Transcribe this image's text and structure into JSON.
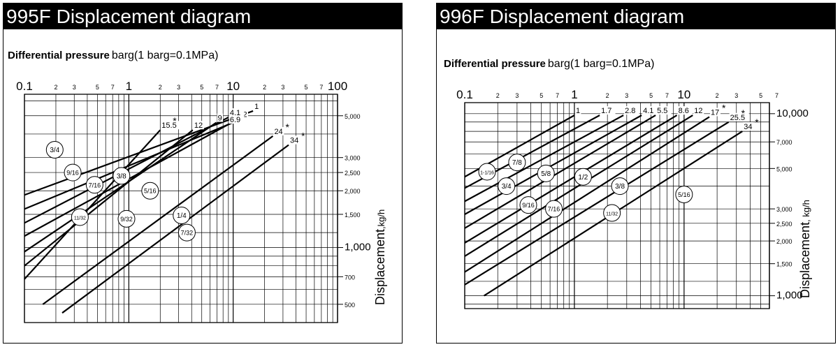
{
  "chart_data": [
    {
      "type": "line",
      "title": "995F Displacement diagram",
      "xlabel_bold": "Differential pressure",
      "xlabel_rest": "barg(1 barg=0.1MPa)",
      "ylabel_main": "Displacement",
      "ylabel_unit": ",kg/h",
      "x_scale": "log",
      "y_scale": "log",
      "xlim": [
        0.1,
        100
      ],
      "ylim": [
        400,
        6500
      ],
      "x_ticks_major": [
        "0.1",
        "1",
        "10",
        "100"
      ],
      "x_ticks_minor": [
        "2",
        "3",
        "5",
        "7",
        "2",
        "3",
        "5",
        "7",
        "2",
        "3",
        "5",
        "7"
      ],
      "y_ticks": [
        {
          "value": 5000,
          "label": "5,000"
        },
        {
          "value": 3000,
          "label": "3,000"
        },
        {
          "value": 2500,
          "label": "2,500"
        },
        {
          "value": 2000,
          "label": "2,000"
        },
        {
          "value": 1500,
          "label": "1,500"
        },
        {
          "value": 1000,
          "label": "1,000"
        },
        {
          "value": 700,
          "label": "700"
        },
        {
          "value": 500,
          "label": "500"
        }
      ],
      "pressure_labels": [
        "1",
        "2",
        "4.1",
        "6.9",
        "9",
        "12",
        "15.5",
        "24",
        "34"
      ],
      "star_marks": [
        "*",
        "*",
        "*"
      ],
      "series": [
        {
          "name": "3/4",
          "label_x": 0.195,
          "label_y": 3300,
          "line_start": [
            0.1,
            1900
          ],
          "line_end": [
            15.5,
            5300
          ]
        },
        {
          "name": "9/16",
          "label_x": 0.29,
          "label_y": 2500,
          "line_start": [
            0.1,
            1600
          ],
          "line_end": [
            12,
            4800
          ]
        },
        {
          "name": "7/16",
          "label_x": 0.47,
          "label_y": 2150,
          "line_start": [
            0.1,
            1350
          ],
          "line_end": [
            9,
            4900
          ]
        },
        {
          "name": "3/8",
          "label_x": 0.85,
          "label_y": 2400,
          "line_start": [
            0.1,
            1150
          ],
          "line_end": [
            9,
            4500
          ]
        },
        {
          "name": "5/16",
          "label_x": 1.6,
          "label_y": 2000,
          "line_start": [
            0.1,
            950
          ],
          "line_end": [
            6.9,
            4600
          ]
        },
        {
          "name": "11/32",
          "label_x": 0.34,
          "label_y": 1450,
          "line_start": [
            0.1,
            800
          ],
          "line_end": [
            4.1,
            4200
          ]
        },
        {
          "name": "9/32",
          "label_x": 0.95,
          "label_y": 1420,
          "line_start": [
            0.1,
            680
          ],
          "line_end": [
            2,
            4200
          ]
        },
        {
          "name": "1/4",
          "label_x": 3.2,
          "label_y": 1480,
          "line_start": [
            0.15,
            500
          ],
          "line_end": [
            24,
            3900
          ]
        },
        {
          "name": "7/32",
          "label_x": 3.6,
          "label_y": 1200,
          "line_start": [
            0.23,
            450
          ],
          "line_end": [
            34,
            3500
          ]
        }
      ]
    },
    {
      "type": "line",
      "title": "996F Displacement diagram",
      "xlabel_bold": "Differential pressure",
      "xlabel_rest": "barg(1 barg=0.1MPa)",
      "ylabel_main": "Displacement",
      "ylabel_unit": ", kg/h",
      "x_scale": "log",
      "y_scale": "log",
      "xlim": [
        0.1,
        60
      ],
      "ylim": [
        850,
        11500
      ],
      "x_ticks_major": [
        "0.1",
        "1",
        "10"
      ],
      "x_ticks_minor": [
        "2",
        "3",
        "5",
        "7",
        "2",
        "3",
        "5",
        "7",
        "2",
        "3",
        "5",
        "7"
      ],
      "y_ticks": [
        {
          "value": 10000,
          "label": "10,000"
        },
        {
          "value": 7000,
          "label": "7,000"
        },
        {
          "value": 5000,
          "label": "5,000"
        },
        {
          "value": 3000,
          "label": "3,000"
        },
        {
          "value": 2500,
          "label": "2,500"
        },
        {
          "value": 2000,
          "label": "2,000"
        },
        {
          "value": 1500,
          "label": "1,500"
        },
        {
          "value": 1000,
          "label": "1,000"
        }
      ],
      "pressure_labels": [
        "1",
        "1.7",
        "2.8",
        "4.1",
        "5.5",
        "8.6",
        "12",
        "17",
        "25.5",
        "34"
      ],
      "star_marks": [
        "*",
        "*",
        "*"
      ],
      "series": [
        {
          "name": "1-1/16",
          "label_x": 0.16,
          "label_y": 4800,
          "line_start": [
            0.1,
            4500
          ],
          "line_end": [
            1,
            9800
          ]
        },
        {
          "name": "7/8",
          "label_x": 0.3,
          "label_y": 5400,
          "line_start": [
            0.1,
            3900
          ],
          "line_end": [
            1.7,
            9800
          ]
        },
        {
          "name": "3/4",
          "label_x": 0.24,
          "label_y": 4000,
          "line_start": [
            0.1,
            3300
          ],
          "line_end": [
            2.8,
            9800
          ]
        },
        {
          "name": "5/8",
          "label_x": 0.55,
          "label_y": 4700,
          "line_start": [
            0.1,
            2800
          ],
          "line_end": [
            4.1,
            9800
          ]
        },
        {
          "name": "1/2",
          "label_x": 1.2,
          "label_y": 4500,
          "line_start": [
            0.1,
            2350
          ],
          "line_end": [
            5.5,
            9800
          ]
        },
        {
          "name": "9/16",
          "label_x": 0.38,
          "label_y": 3150,
          "line_start": [
            0.1,
            1950
          ],
          "line_end": [
            8.6,
            9800
          ]
        },
        {
          "name": "7/16",
          "label_x": 0.65,
          "label_y": 3000,
          "line_start": [
            0.1,
            1650
          ],
          "line_end": [
            12,
            9800
          ]
        },
        {
          "name": "3/8",
          "label_x": 2.6,
          "label_y": 4000,
          "line_start": [
            0.1,
            1350
          ],
          "line_end": [
            17,
            9600
          ]
        },
        {
          "name": "11/32",
          "label_x": 2.2,
          "label_y": 2850,
          "line_start": [
            0.1,
            1150
          ],
          "line_end": [
            25.5,
            9000
          ]
        },
        {
          "name": "5/16",
          "label_x": 10,
          "label_y": 3600,
          "line_start": [
            0.15,
            1000
          ],
          "line_end": [
            34,
            8000
          ]
        }
      ]
    }
  ]
}
